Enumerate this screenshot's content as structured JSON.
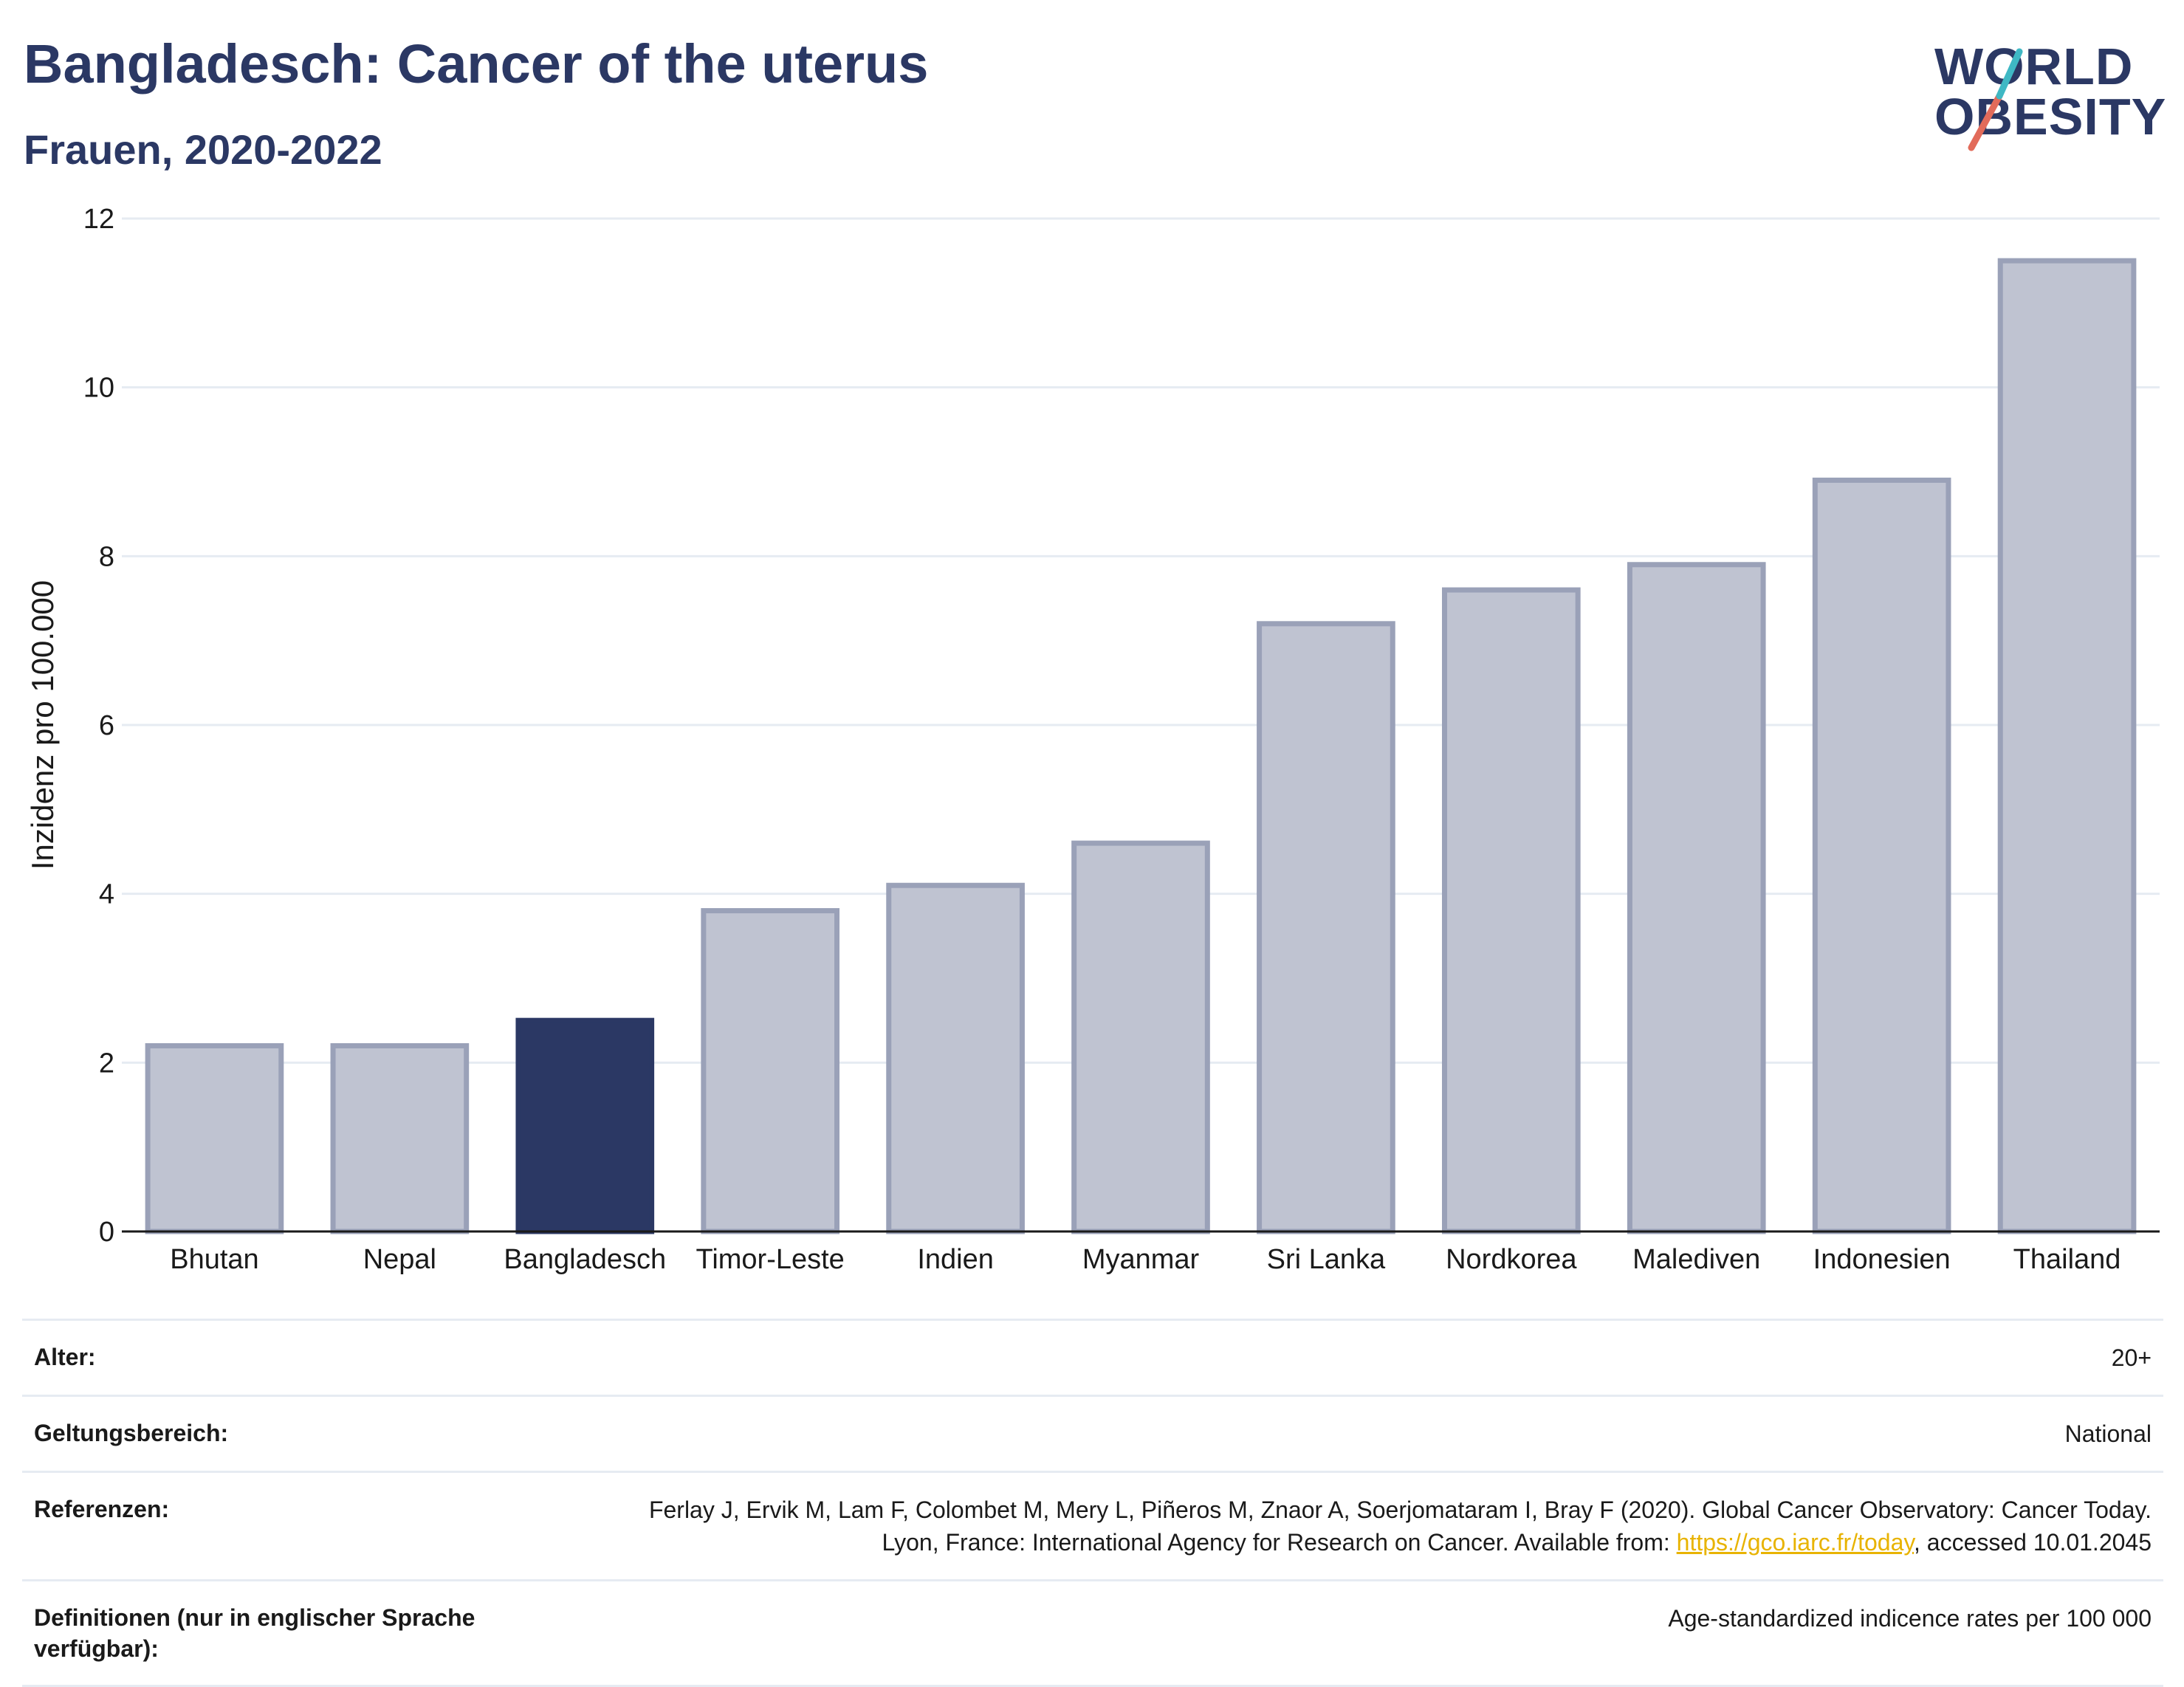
{
  "header": {
    "title": "Bangladesch: Cancer of the uterus",
    "subtitle": "Frauen, 2020-2022"
  },
  "logo": {
    "line1": "WORLD",
    "line2": "OBESITY"
  },
  "colors": {
    "highlight": "#2b3864",
    "bar": "#bfc3d1",
    "bar_edge": "#9aa1b8",
    "grid": "#e6ebf2",
    "link": "#e8b300"
  },
  "chart_data": {
    "type": "bar",
    "categories": [
      "Bhutan",
      "Nepal",
      "Bangladesch",
      "Timor-Leste",
      "Indien",
      "Myanmar",
      "Sri Lanka",
      "Nordkorea",
      "Malediven",
      "Indonesien",
      "Thailand"
    ],
    "values": [
      2.2,
      2.2,
      2.5,
      3.8,
      4.1,
      4.6,
      7.2,
      7.6,
      7.9,
      8.9,
      11.5
    ],
    "highlight": "Bangladesch",
    "ylabel": "Inzidenz pro 100.000",
    "ylim": [
      0,
      12
    ],
    "yticks": [
      0,
      2,
      4,
      6,
      8,
      10,
      12
    ],
    "grid": true
  },
  "meta": {
    "age_label": "Alter:",
    "age_value": "20+",
    "scope_label": "Geltungsbereich:",
    "scope_value": "National",
    "refs_label": "Referenzen:",
    "refs_text_1": "Ferlay J, Ervik M, Lam F, Colombet M, Mery L, Piñeros M, Znaor A, Soerjomataram I, Bray F (2020). Global Cancer Observatory: Cancer Today. Lyon, France: International Agency for Research on Cancer. Available from: ",
    "refs_link": "https://gco.iarc.fr/today",
    "refs_text_2": ", accessed 10.01.2045",
    "defs_label": "Definitionen (nur in englischer Sprache verfügbar):",
    "defs_value": "Age-standardized indicence rates per 100 000"
  }
}
